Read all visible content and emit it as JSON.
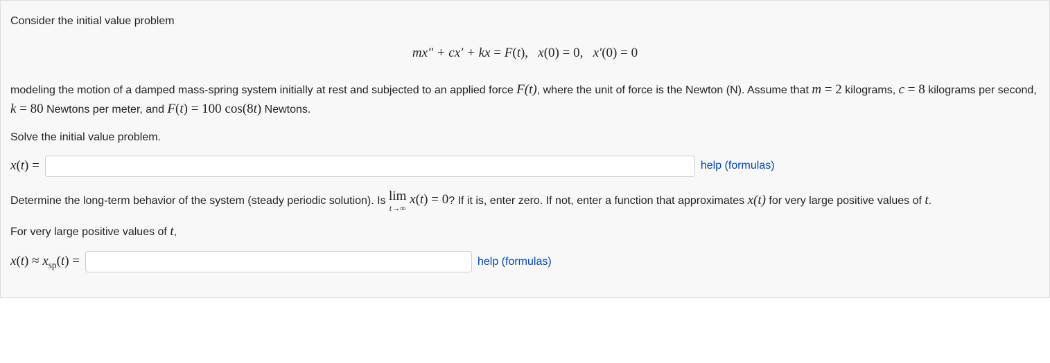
{
  "intro": "Consider the initial value problem",
  "equation": "mx″ + cx′ + kx = F(t),   x(0) = 0,   x′(0) = 0",
  "body1_pre": "modeling the motion of a damped mass-spring system initially at rest and subjected to an applied force ",
  "body1_post": ", where the unit of force is the Newton (N). Assume that ",
  "m_eq": "m = 2",
  "m_txt": " kilograms, ",
  "c_eq": "c = 8",
  "c_txt": " kilograms per second, ",
  "k_eq": "k = 80",
  "k_txt": " Newtons per meter, and ",
  "F_eq": "F(t) = 100 cos(8t)",
  "F_txt": " Newtons.",
  "solve_prompt": "Solve the initial value problem.",
  "ans1_label": "x(t) = ",
  "help_text": "help (formulas)",
  "longterm_pre": "Determine the long-term behavior of the system (steady periodic solution). Is ",
  "lim_top": "lim",
  "lim_bot": "t→∞",
  "lim_after": " x(t) = 0",
  "longterm_post": "? If it is, enter zero. If not, enter a function that approximates ",
  "xt": "x(t)",
  "longterm_tail": " for very large positive values of ",
  "t_sym": "t",
  "for_large": "For very large positive values of ",
  "comma": ",",
  "period": ".",
  "ans2_label_a": "x(t) ≈ x",
  "ans2_label_sub": "sp",
  "ans2_label_b": "(t) = ",
  "Ft": "F(t)"
}
